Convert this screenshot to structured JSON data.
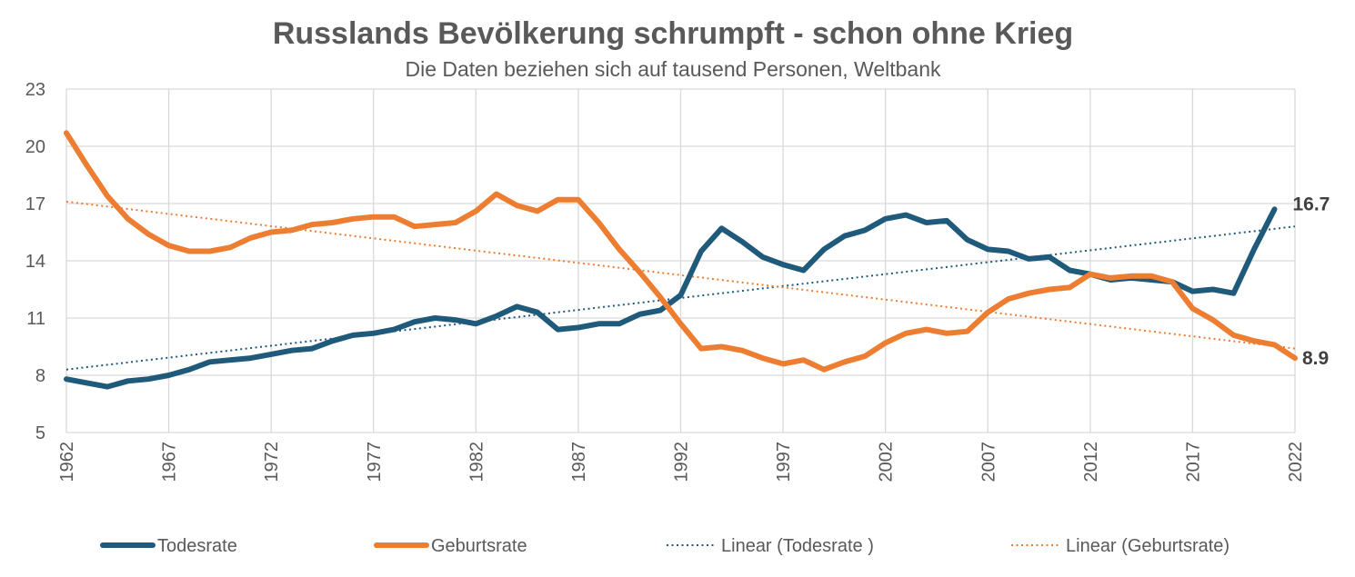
{
  "chart_data": {
    "type": "line",
    "title": "Russlands Bevölkerung schrumpft - schon ohne Krieg",
    "subtitle": "Die Daten beziehen sich auf tausend Personen, Weltbank",
    "xlabel": "",
    "ylabel": "",
    "x": [
      1962,
      1963,
      1964,
      1965,
      1966,
      1967,
      1968,
      1969,
      1970,
      1971,
      1972,
      1973,
      1974,
      1975,
      1976,
      1977,
      1978,
      1979,
      1980,
      1981,
      1982,
      1983,
      1984,
      1985,
      1986,
      1987,
      1988,
      1989,
      1990,
      1991,
      1992,
      1993,
      1994,
      1995,
      1996,
      1997,
      1998,
      1999,
      2000,
      2001,
      2002,
      2003,
      2004,
      2005,
      2006,
      2007,
      2008,
      2009,
      2010,
      2011,
      2012,
      2013,
      2014,
      2015,
      2016,
      2017,
      2018,
      2019,
      2020,
      2021,
      2022
    ],
    "xlim": [
      1962,
      2022
    ],
    "x_ticks": [
      "1962",
      "1967",
      "1972",
      "1977",
      "1982",
      "1987",
      "1992",
      "1997",
      "2002",
      "2007",
      "2012",
      "2017",
      "2022"
    ],
    "ylim": [
      5,
      23
    ],
    "y_ticks": [
      "5",
      "8",
      "11",
      "14",
      "17",
      "20",
      "23"
    ],
    "grid": true,
    "legend_position": "bottom",
    "series": [
      {
        "name": "Todesrate",
        "color": "#1f5a7a",
        "style": "solid",
        "values": [
          7.8,
          7.6,
          7.4,
          7.7,
          7.8,
          8.0,
          8.3,
          8.7,
          8.8,
          8.9,
          9.1,
          9.3,
          9.4,
          9.8,
          10.1,
          10.2,
          10.4,
          10.8,
          11.0,
          10.9,
          10.7,
          11.1,
          11.6,
          11.3,
          10.4,
          10.5,
          10.7,
          10.7,
          11.2,
          11.4,
          12.2,
          14.5,
          15.7,
          15.0,
          14.2,
          13.8,
          13.5,
          14.6,
          15.3,
          15.6,
          16.2,
          16.4,
          16.0,
          16.1,
          15.1,
          14.6,
          14.5,
          14.1,
          14.2,
          13.5,
          13.3,
          13.0,
          13.1,
          13.0,
          12.9,
          12.4,
          12.5,
          12.3,
          14.6,
          16.7,
          null
        ]
      },
      {
        "name": "Geburtsrate",
        "color": "#ed7d31",
        "style": "solid",
        "values": [
          20.7,
          19.0,
          17.4,
          16.2,
          15.4,
          14.8,
          14.5,
          14.5,
          14.7,
          15.2,
          15.5,
          15.6,
          15.9,
          16.0,
          16.2,
          16.3,
          16.3,
          15.8,
          15.9,
          16.0,
          16.6,
          17.5,
          16.9,
          16.6,
          17.2,
          17.2,
          16.0,
          14.6,
          13.4,
          12.1,
          10.7,
          9.4,
          9.5,
          9.3,
          8.9,
          8.6,
          8.8,
          8.3,
          8.7,
          9.0,
          9.7,
          10.2,
          10.4,
          10.2,
          10.3,
          11.3,
          12.0,
          12.3,
          12.5,
          12.6,
          13.3,
          13.1,
          13.2,
          13.2,
          12.9,
          11.5,
          10.9,
          10.1,
          9.8,
          9.6,
          8.9
        ]
      }
    ],
    "trendlines": [
      {
        "name": "Linear (Todesrate )",
        "color": "#1f5a7a",
        "style": "dotted",
        "start": [
          1962,
          8.3
        ],
        "end": [
          2022,
          15.8
        ]
      },
      {
        "name": "Linear (Geburtsrate)",
        "color": "#ed7d31",
        "style": "dotted",
        "start": [
          1962,
          17.1
        ],
        "end": [
          2022,
          9.4
        ]
      }
    ],
    "annotations": [
      {
        "text": "16.7",
        "x": 2021,
        "y": 16.7,
        "series": "Todesrate"
      },
      {
        "text": "8.9",
        "x": 2022,
        "y": 8.9,
        "series": "Geburtsrate"
      }
    ]
  }
}
